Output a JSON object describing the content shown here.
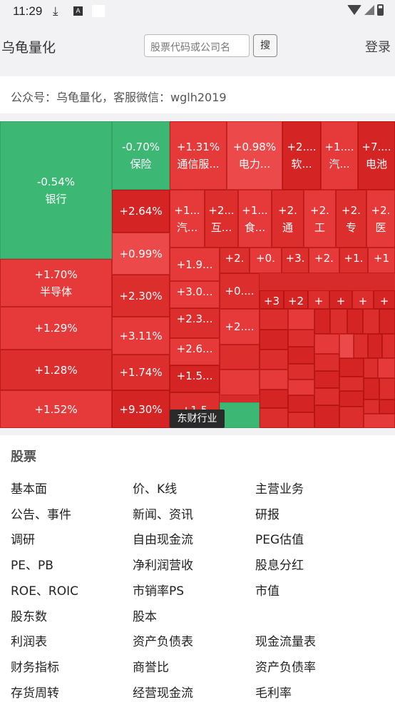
{
  "status_bar": {
    "time": "11:29",
    "download_icon": "download-icon",
    "app_icon": "A"
  },
  "header": {
    "brand": "乌龟量化",
    "search_placeholder": "股票代码或公司名",
    "search_button": "搜",
    "login": "登录"
  },
  "notice": "公众号：乌龟量化，客服微信：wglh2019",
  "treemap": {
    "label": "东财行业",
    "tiles": [
      {
        "pct": "-0.54%",
        "name": "银行",
        "trend": "down"
      },
      {
        "pct": "-0.70%",
        "name": "保险",
        "trend": "down"
      },
      {
        "pct": "+1.31%",
        "name": "通信服...",
        "trend": "up"
      },
      {
        "pct": "+0.98%",
        "name": "电力...",
        "trend": "up"
      },
      {
        "pct": "+2....",
        "name": "软...",
        "trend": "up"
      },
      {
        "pct": "+1....",
        "name": "汽...",
        "trend": "up"
      },
      {
        "pct": "+7....",
        "name": "电池",
        "trend": "up"
      },
      {
        "pct": "+1.70%",
        "name": "半导体",
        "trend": "up"
      },
      {
        "pct": "+2.64%",
        "name": "",
        "trend": "up"
      },
      {
        "pct": "+1...",
        "name": "汽...",
        "trend": "up"
      },
      {
        "pct": "+2...",
        "name": "互...",
        "trend": "up"
      },
      {
        "pct": "+1...",
        "name": "食...",
        "trend": "up"
      },
      {
        "pct": "+2.",
        "name": "通",
        "trend": "up"
      },
      {
        "pct": "+2.",
        "name": "工",
        "trend": "up"
      },
      {
        "pct": "+2.",
        "name": "专",
        "trend": "up"
      },
      {
        "pct": "+2.",
        "name": "医",
        "trend": "up"
      },
      {
        "pct": "+0.99%",
        "name": "",
        "trend": "up"
      },
      {
        "pct": "+1.9...",
        "name": "",
        "trend": "up"
      },
      {
        "pct": "+2.",
        "name": "",
        "trend": "up"
      },
      {
        "pct": "+0.",
        "name": "",
        "trend": "up"
      },
      {
        "pct": "+3.",
        "name": "",
        "trend": "up"
      },
      {
        "pct": "+2.",
        "name": "",
        "trend": "up"
      },
      {
        "pct": "+1.",
        "name": "",
        "trend": "up"
      },
      {
        "pct": "+1",
        "name": "",
        "trend": "up"
      },
      {
        "pct": "+1.29%",
        "name": "",
        "trend": "up"
      },
      {
        "pct": "+2.30%",
        "name": "",
        "trend": "up"
      },
      {
        "pct": "+3.0...",
        "name": "",
        "trend": "up"
      },
      {
        "pct": "+0....",
        "name": "",
        "trend": "up"
      },
      {
        "pct": "+3",
        "name": "",
        "trend": "up"
      },
      {
        "pct": "+2",
        "name": "",
        "trend": "up"
      },
      {
        "pct": "+",
        "name": "",
        "trend": "up"
      },
      {
        "pct": "+",
        "name": "",
        "trend": "up"
      },
      {
        "pct": "+",
        "name": "",
        "trend": "up"
      },
      {
        "pct": "+",
        "name": "",
        "trend": "up"
      },
      {
        "pct": "+3.11%",
        "name": "",
        "trend": "up"
      },
      {
        "pct": "+2.3...",
        "name": "",
        "trend": "up"
      },
      {
        "pct": "+2....",
        "name": "",
        "trend": "up"
      },
      {
        "pct": "+1.28%",
        "name": "",
        "trend": "up"
      },
      {
        "pct": "+2.6...",
        "name": "",
        "trend": "up"
      },
      {
        "pct": "+1.74%",
        "name": "",
        "trend": "up"
      },
      {
        "pct": "+1.5...",
        "name": "",
        "trend": "up"
      },
      {
        "pct": "+1.52%",
        "name": "",
        "trend": "up"
      },
      {
        "pct": "+9.30%",
        "name": "",
        "trend": "up"
      },
      {
        "pct": "+1.5",
        "name": "",
        "trend": "up"
      }
    ]
  },
  "menu": {
    "heading": "股票",
    "items": [
      "基本面",
      "价、K线",
      "主营业务",
      "公告、事件",
      "新闻、资讯",
      "研报",
      "调研",
      "自由现金流",
      "PEG估值",
      "PE、PB",
      "净利润营收",
      "股息分红",
      "ROE、ROIC",
      "市销率PS",
      "市值",
      "股东数",
      "股本",
      "",
      "利润表",
      "资产负债表",
      "现金流量表",
      "财务指标",
      "商誉比",
      "资产负债率",
      "存货周转",
      "经营现金流",
      "毛利率"
    ]
  }
}
